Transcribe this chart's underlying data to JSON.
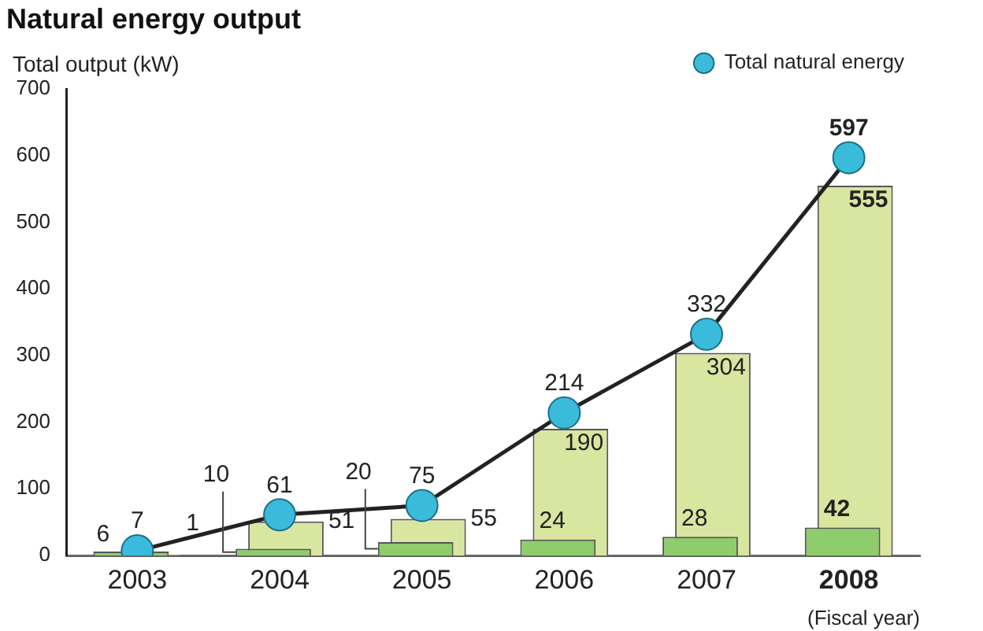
{
  "chart_data": {
    "type": "bar",
    "title": "Natural energy output",
    "ylabel": "Total output (kW)",
    "xlabel": "(Fiscal year)",
    "categories": [
      "2003",
      "2004",
      "2005",
      "2006",
      "2007",
      "2008"
    ],
    "series": [
      {
        "color": "#d9e6a0",
        "values": [
          1,
          51,
          55,
          190,
          304,
          555
        ]
      },
      {
        "color": "#8fcc6c",
        "values": [
          6,
          10,
          20,
          24,
          28,
          42
        ]
      },
      {
        "type": "line",
        "name": "Total natural energy",
        "color": "#222222",
        "values": [
          7,
          61,
          75,
          214,
          332,
          597
        ]
      }
    ],
    "ylim": [
      0,
      700
    ],
    "yticks": [
      0,
      100,
      200,
      300,
      400,
      500,
      600,
      700
    ],
    "grid": false,
    "legend": "top right",
    "data_labels": true,
    "marker": "circle",
    "line_style": "solid"
  }
}
